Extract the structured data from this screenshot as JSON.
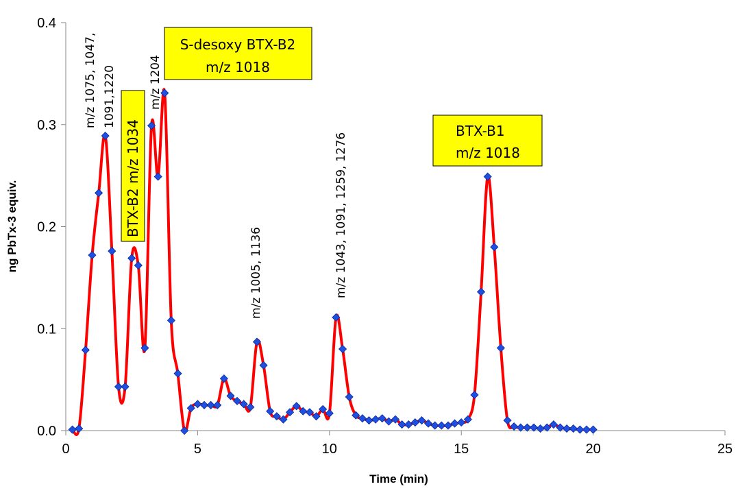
{
  "chart_data": {
    "type": "line",
    "title": "",
    "xlabel": "Time (min)",
    "ylabel": "ng PbTx-3 equiv.",
    "xlim": [
      0,
      25
    ],
    "ylim": [
      0,
      0.4
    ],
    "x_ticks": [
      0,
      5,
      10,
      15,
      20,
      25
    ],
    "y_ticks": [
      0,
      0.1,
      0.2,
      0.3,
      0.4
    ],
    "x_tick_labels": [
      "0",
      "5",
      "10",
      "15",
      "20",
      "25"
    ],
    "y_tick_labels": [
      "0.0",
      "0.1",
      "0.2",
      "0.3",
      "0.4"
    ],
    "grid": false,
    "legend": "none",
    "line_color": "#ff0000",
    "marker_color": "#1f4fe0",
    "series": [
      {
        "x": [
          0.25,
          0.5,
          0.75,
          1.0,
          1.25,
          1.5,
          1.75,
          2.0,
          2.25,
          2.5,
          2.75,
          3.0,
          3.25,
          3.5,
          3.75,
          4.0,
          4.25,
          4.5,
          4.75,
          5.0,
          5.25,
          5.5,
          5.75,
          6.0,
          6.25,
          6.5,
          6.75,
          7.0,
          7.25,
          7.5,
          7.75,
          8.0,
          8.25,
          8.5,
          8.75,
          9.0,
          9.25,
          9.5,
          9.75,
          10.0,
          10.25,
          10.5,
          10.75,
          11.0,
          11.25,
          11.5,
          11.75,
          12.0,
          12.25,
          12.5,
          12.75,
          13.0,
          13.25,
          13.5,
          13.75,
          14.0,
          14.25,
          14.5,
          14.75,
          15.0,
          15.25,
          15.5,
          15.75,
          16.0,
          16.25,
          16.5,
          16.75,
          17.0,
          17.25,
          17.5,
          17.75,
          18.0,
          18.25,
          18.5,
          18.75,
          19.0,
          19.25,
          19.5,
          19.75,
          20.0
        ],
        "values": [
          0.001,
          0.002,
          0.079,
          0.172,
          0.233,
          0.289,
          0.176,
          0.043,
          0.043,
          0.169,
          0.162,
          0.081,
          0.299,
          0.249,
          0.331,
          0.108,
          0.056,
          0.0,
          0.022,
          0.026,
          0.025,
          0.025,
          0.025,
          0.051,
          0.034,
          0.029,
          0.026,
          0.023,
          0.087,
          0.064,
          0.019,
          0.014,
          0.011,
          0.018,
          0.024,
          0.019,
          0.018,
          0.014,
          0.021,
          0.017,
          0.111,
          0.08,
          0.033,
          0.015,
          0.012,
          0.01,
          0.011,
          0.012,
          0.009,
          0.011,
          0.006,
          0.006,
          0.008,
          0.01,
          0.007,
          0.005,
          0.005,
          0.005,
          0.007,
          0.008,
          0.011,
          0.035,
          0.136,
          0.249,
          0.18,
          0.081,
          0.01,
          0.004,
          0.003,
          0.003,
          0.003,
          0.002,
          0.003,
          0.006,
          0.003,
          0.002,
          0.002,
          0.001,
          0.001,
          0.001
        ]
      }
    ],
    "annotations": [
      {
        "text": "m/z 1075, 1047,",
        "rotated": true
      },
      {
        "text": "1091,1220",
        "rotated": true
      },
      {
        "text": "m/z 1204",
        "rotated": true
      },
      {
        "text": "m/z 1005, 1136",
        "rotated": true
      },
      {
        "text": "m/z 1043, 1091, 1259, 1276",
        "rotated": true
      }
    ],
    "boxed_labels": [
      {
        "lines": [
          "BTX-B2 m/z 1034"
        ],
        "rotated": true
      },
      {
        "lines": [
          "S-desoxy BTX-B2",
          "m/z 1018"
        ],
        "rotated": false
      },
      {
        "lines": [
          "BTX-B1",
          "m/z 1018"
        ],
        "rotated": false
      }
    ],
    "box_fill": "#ffff00"
  }
}
